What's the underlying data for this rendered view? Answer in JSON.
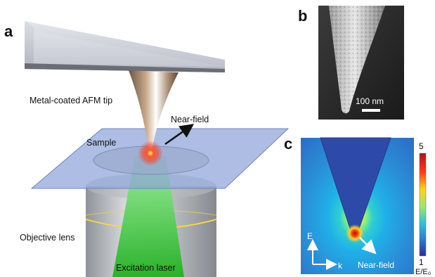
{
  "panels": {
    "a": {
      "label": "a",
      "tip_label": "Metal-coated AFM tip",
      "nearfield_label": "Near-field",
      "sample_label": "Sample",
      "objective_label": "Objective lens",
      "laser_label": "Excitation laser"
    },
    "b": {
      "label": "b",
      "scale_bar": "100 nm"
    },
    "c": {
      "label": "c",
      "colorbar_max": "5",
      "colorbar_min": "1",
      "colorbar_unit": "E/E₀",
      "axis_e": "E",
      "axis_k": "k",
      "nearfield_label": "Near-field"
    }
  },
  "colors": {
    "glass": "#8ea3d8",
    "laser": "#32c832",
    "hotspot": "#ff3b1f",
    "field_background": "#2a8fd6",
    "tip_field": "#2e4aa8"
  }
}
